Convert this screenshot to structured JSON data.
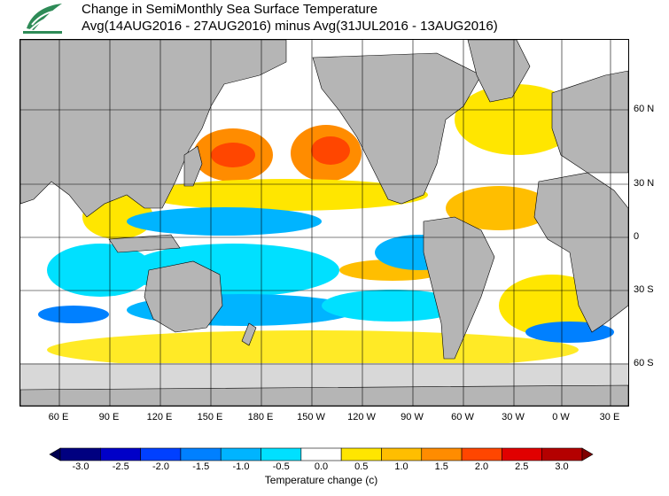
{
  "header": {
    "title": "Change in SemiMonthly Sea Surface Temperature",
    "subtitle": "Avg(14AUG2016 - 27AUG2016) minus Avg(31JUL2016 - 13AUG2016)",
    "logo_icon": "noaa-leaf-logo-icon"
  },
  "map": {
    "lat_labels": [
      "60 N",
      "30 N",
      "0",
      "30 S",
      "60 S"
    ],
    "lon_labels": [
      "60 E",
      "90 E",
      "120 E",
      "150 E",
      "180 E",
      "150 W",
      "120 W",
      "90 W",
      "60 W",
      "30 W",
      "0 W",
      "30 E"
    ],
    "land_color": "#b5b5b5",
    "ice_color": "#d8d8d8",
    "grid_color": "#000000"
  },
  "colorbar": {
    "title": "Temperature change  (c)",
    "labels": [
      "-3.0",
      "-2.5",
      "-2.0",
      "-1.5",
      "-1.0",
      "-0.5",
      "0.0",
      "0.5",
      "1.0",
      "1.5",
      "2.0",
      "2.5",
      "3.0"
    ],
    "colors": [
      "#000080",
      "#0000c8",
      "#0040ff",
      "#0080ff",
      "#00b4ff",
      "#00e0ff",
      "#ffffff",
      "#ffe600",
      "#ffbe00",
      "#ff8c00",
      "#ff4600",
      "#e10000",
      "#b40000"
    ]
  }
}
